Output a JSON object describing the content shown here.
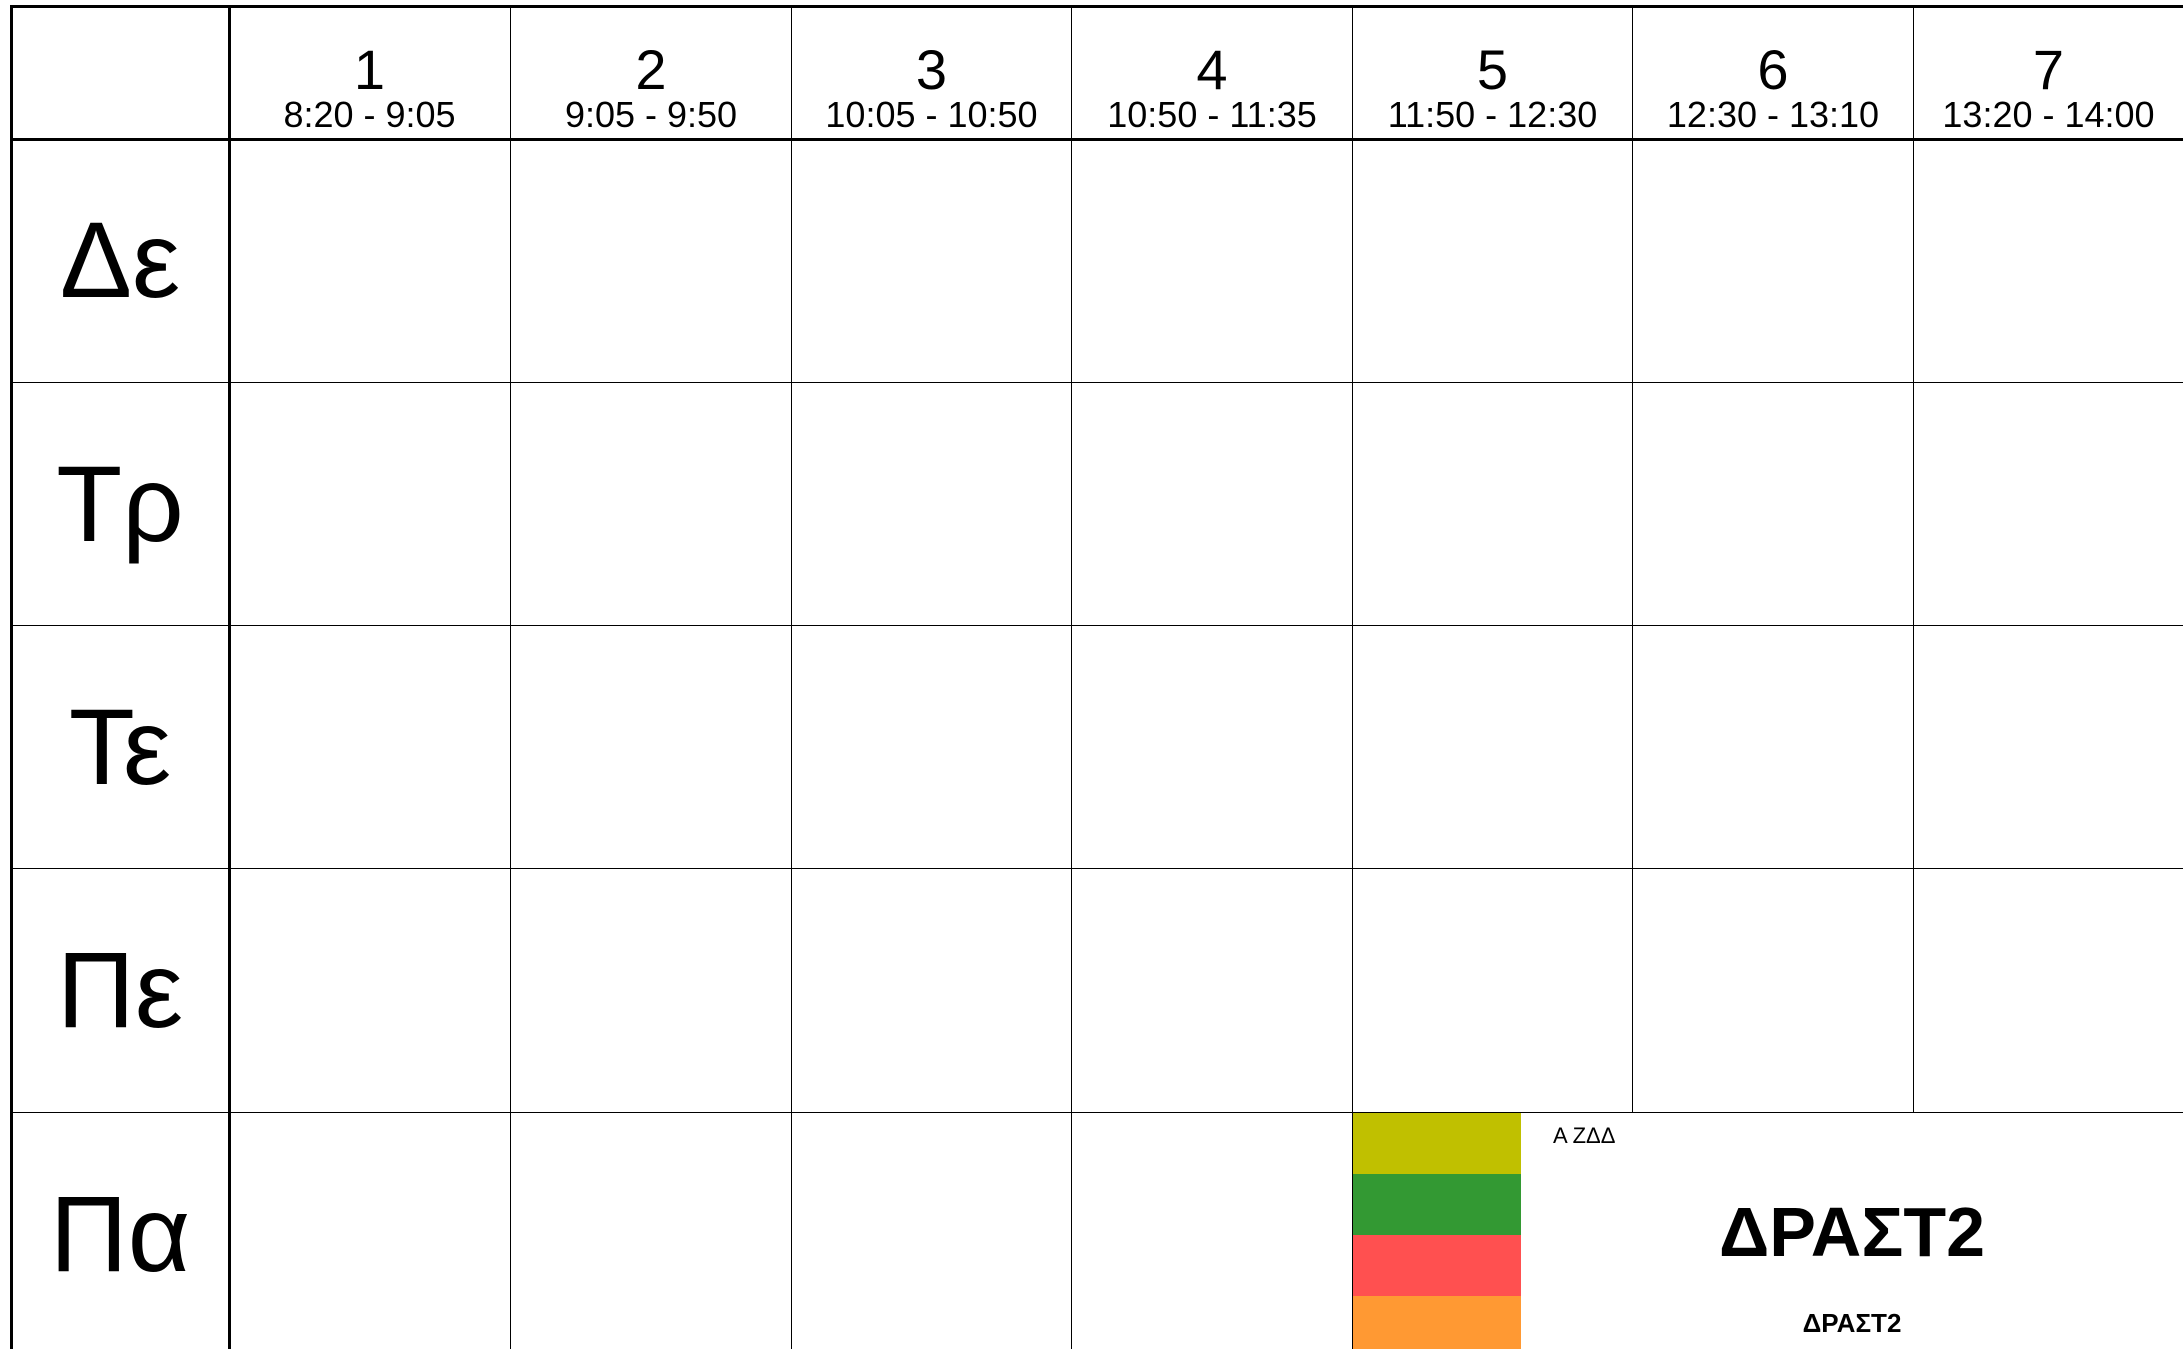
{
  "periods": [
    {
      "number": "1",
      "time": "8:20 - 9:05"
    },
    {
      "number": "2",
      "time": "9:05 - 9:50"
    },
    {
      "number": "3",
      "time": "10:05 - 10:50"
    },
    {
      "number": "4",
      "time": "10:50 - 11:35"
    },
    {
      "number": "5",
      "time": "11:50 - 12:30"
    },
    {
      "number": "6",
      "time": "12:30 - 13:10"
    },
    {
      "number": "7",
      "time": "13:20 - 14:00"
    }
  ],
  "days": [
    {
      "label": "Δε"
    },
    {
      "label": "Τρ"
    },
    {
      "label": "Τε"
    },
    {
      "label": "Πε"
    },
    {
      "label": "Πα"
    }
  ],
  "lesson": {
    "classes": "Α ΖΔΔ",
    "title": "ΔΡΑΣΤ2",
    "subtitle": "ΔΡΑΣΤ2",
    "colors": [
      "#c0c000",
      "#339933",
      "#ff5050",
      "#ff9933"
    ]
  }
}
